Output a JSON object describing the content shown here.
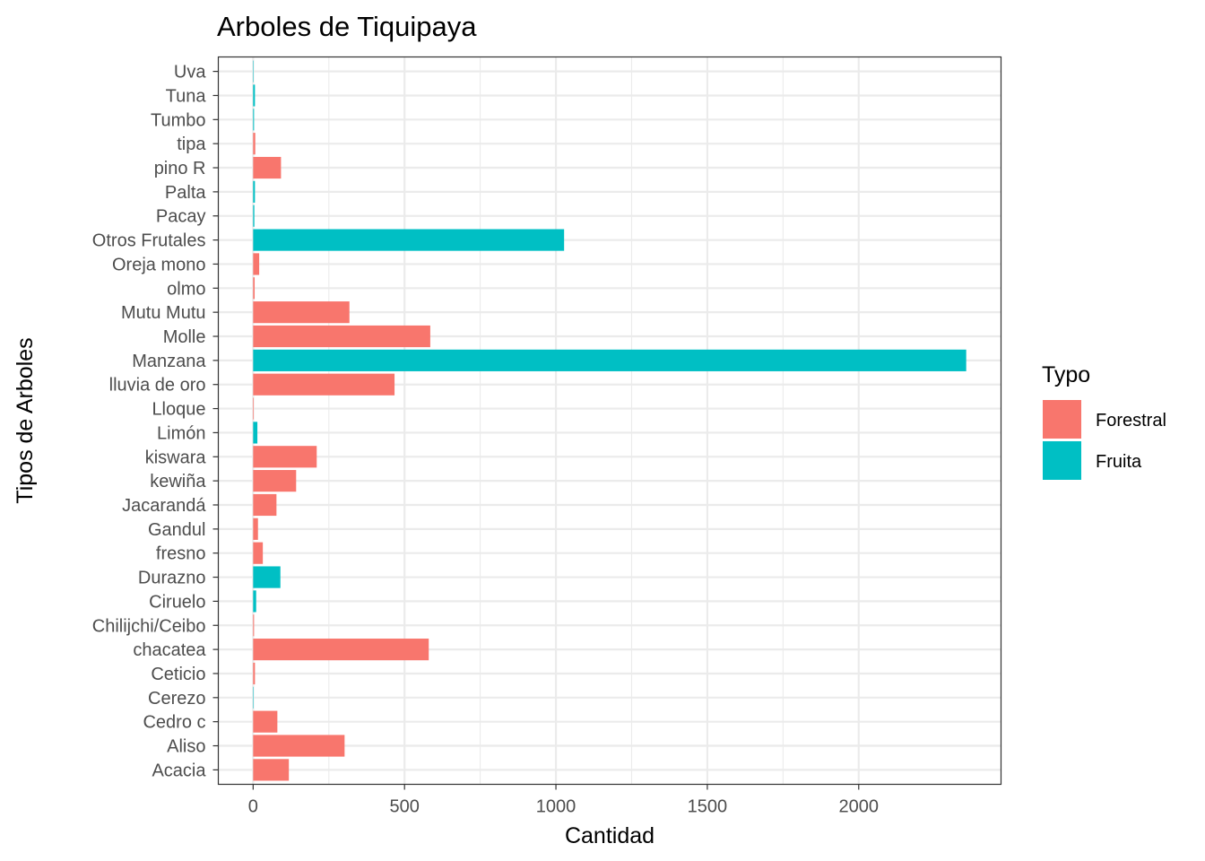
{
  "chart_data": {
    "type": "bar",
    "orientation": "horizontal",
    "title": "Arboles de Tiquipaya",
    "xlabel": "Cantidad",
    "ylabel": "Tipos de Arboles",
    "xlim": [
      -115,
      2470
    ],
    "xticks": [
      0,
      500,
      1000,
      1500,
      2000
    ],
    "xtick_labels": [
      "0",
      "500",
      "1000",
      "1500",
      "2000"
    ],
    "grid": true,
    "legend": {
      "title": "Typo",
      "placement": "right",
      "entries": [
        {
          "name": "Forestral",
          "color": "#F8766D"
        },
        {
          "name": "Fruita",
          "color": "#00BFC4"
        }
      ]
    },
    "categories": [
      "Acacia",
      "Aliso",
      "Cedro c",
      "Cerezo",
      "Ceticio",
      "chacatea",
      "Chilijchi/Ceibo",
      "Ciruelo",
      "Durazno",
      "fresno",
      "Gandul",
      "Jacarandá",
      "kewiña",
      "kiswara",
      "Limón",
      "Lloque",
      "lluvia de oro",
      "Manzana",
      "Molle",
      "Mutu Mutu",
      "olmo",
      "Oreja mono",
      "Otros Frutales",
      "Pacay",
      "Palta",
      "pino R",
      "tipa",
      "Tumbo",
      "Tuna",
      "Uva"
    ],
    "values": [
      118,
      302,
      80,
      1,
      6,
      580,
      3,
      10,
      90,
      32,
      16,
      77,
      142,
      210,
      14,
      2,
      467,
      2355,
      585,
      318,
      5,
      20,
      1027,
      4,
      6,
      92,
      7,
      3,
      6,
      1
    ],
    "types": [
      "Forestral",
      "Forestral",
      "Forestral",
      "Fruita",
      "Forestral",
      "Forestral",
      "Forestral",
      "Fruita",
      "Fruita",
      "Forestral",
      "Forestral",
      "Forestral",
      "Forestral",
      "Forestral",
      "Fruita",
      "Forestral",
      "Forestral",
      "Fruita",
      "Forestral",
      "Forestral",
      "Forestral",
      "Forestral",
      "Fruita",
      "Fruita",
      "Fruita",
      "Forestral",
      "Forestral",
      "Fruita",
      "Fruita",
      "Fruita"
    ]
  },
  "colors": {
    "grid": "#EBEBEB",
    "panel_border": "#333333",
    "tick": "#333333",
    "tick_label": "#4D4D4D"
  }
}
